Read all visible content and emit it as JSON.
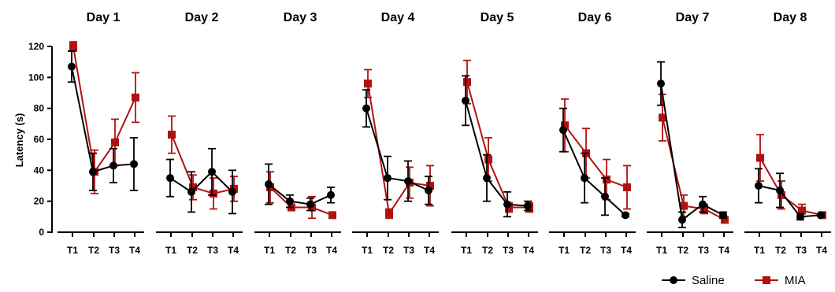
{
  "chart_data": {
    "type": "line",
    "ylabel": "Latency (s)",
    "ylim": [
      0,
      120
    ],
    "yticks": [
      0,
      20,
      40,
      60,
      80,
      100,
      120
    ],
    "categories": [
      "T1",
      "T2",
      "T3",
      "T4"
    ],
    "grid": false,
    "legend_position": "bottom-right",
    "legend": [
      {
        "name": "Saline",
        "color": "#000000",
        "marker": "circle"
      },
      {
        "name": "MIA",
        "color": "#b01111",
        "marker": "square"
      }
    ],
    "panels": [
      {
        "title": "Day 1",
        "series": [
          {
            "name": "Saline",
            "values": [
              107,
              39,
              43,
              44
            ],
            "errors": [
              10,
              12,
              11,
              17
            ]
          },
          {
            "name": "MIA",
            "values": [
              120,
              39,
              58,
              87
            ],
            "errors": [
              3,
              14,
              15,
              16
            ]
          }
        ]
      },
      {
        "title": "Day 2",
        "series": [
          {
            "name": "Saline",
            "values": [
              35,
              26,
              39,
              26
            ],
            "errors": [
              12,
              13,
              15,
              14
            ]
          },
          {
            "name": "MIA",
            "values": [
              63,
              29,
              25,
              28
            ],
            "errors": [
              12,
              8,
              10,
              8
            ]
          }
        ]
      },
      {
        "title": "Day 3",
        "series": [
          {
            "name": "Saline",
            "values": [
              31,
              20,
              18,
              24
            ],
            "errors": [
              13,
              4,
              4,
              5
            ]
          },
          {
            "name": "MIA",
            "values": [
              29,
              16,
              16,
              11
            ],
            "errors": [
              10,
              2,
              7,
              1
            ]
          }
        ]
      },
      {
        "title": "Day 4",
        "series": [
          {
            "name": "Saline",
            "values": [
              80,
              35,
              33,
              27
            ],
            "errors": [
              12,
              14,
              13,
              9
            ]
          },
          {
            "name": "MIA",
            "values": [
              96,
              12,
              32,
              30
            ],
            "errors": [
              9,
              3,
              10,
              13
            ]
          }
        ]
      },
      {
        "title": "Day 5",
        "series": [
          {
            "name": "Saline",
            "values": [
              85,
              35,
              18,
              17
            ],
            "errors": [
              16,
              15,
              8,
              3
            ]
          },
          {
            "name": "MIA",
            "values": [
              97,
              47,
              16,
              16
            ],
            "errors": [
              14,
              14,
              3,
              3
            ]
          }
        ]
      },
      {
        "title": "Day 6",
        "series": [
          {
            "name": "Saline",
            "values": [
              66,
              35,
              23,
              11
            ],
            "errors": [
              14,
              16,
              12,
              1
            ]
          },
          {
            "name": "MIA",
            "values": [
              69,
              51,
              34,
              29
            ],
            "errors": [
              17,
              16,
              13,
              14
            ]
          }
        ]
      },
      {
        "title": "Day 7",
        "series": [
          {
            "name": "Saline",
            "values": [
              96,
              8,
              18,
              11
            ],
            "errors": [
              14,
              5,
              5,
              2
            ]
          },
          {
            "name": "MIA",
            "values": [
              74,
              17,
              15,
              8
            ],
            "errors": [
              15,
              7,
              3,
              2
            ]
          }
        ]
      },
      {
        "title": "Day 8",
        "series": [
          {
            "name": "Saline",
            "values": [
              30,
              27,
              10,
              11
            ],
            "errors": [
              11,
              11,
              2,
              1
            ]
          },
          {
            "name": "MIA",
            "values": [
              48,
              24,
              14,
              11
            ],
            "errors": [
              15,
              9,
              4,
              1
            ]
          }
        ]
      }
    ]
  }
}
